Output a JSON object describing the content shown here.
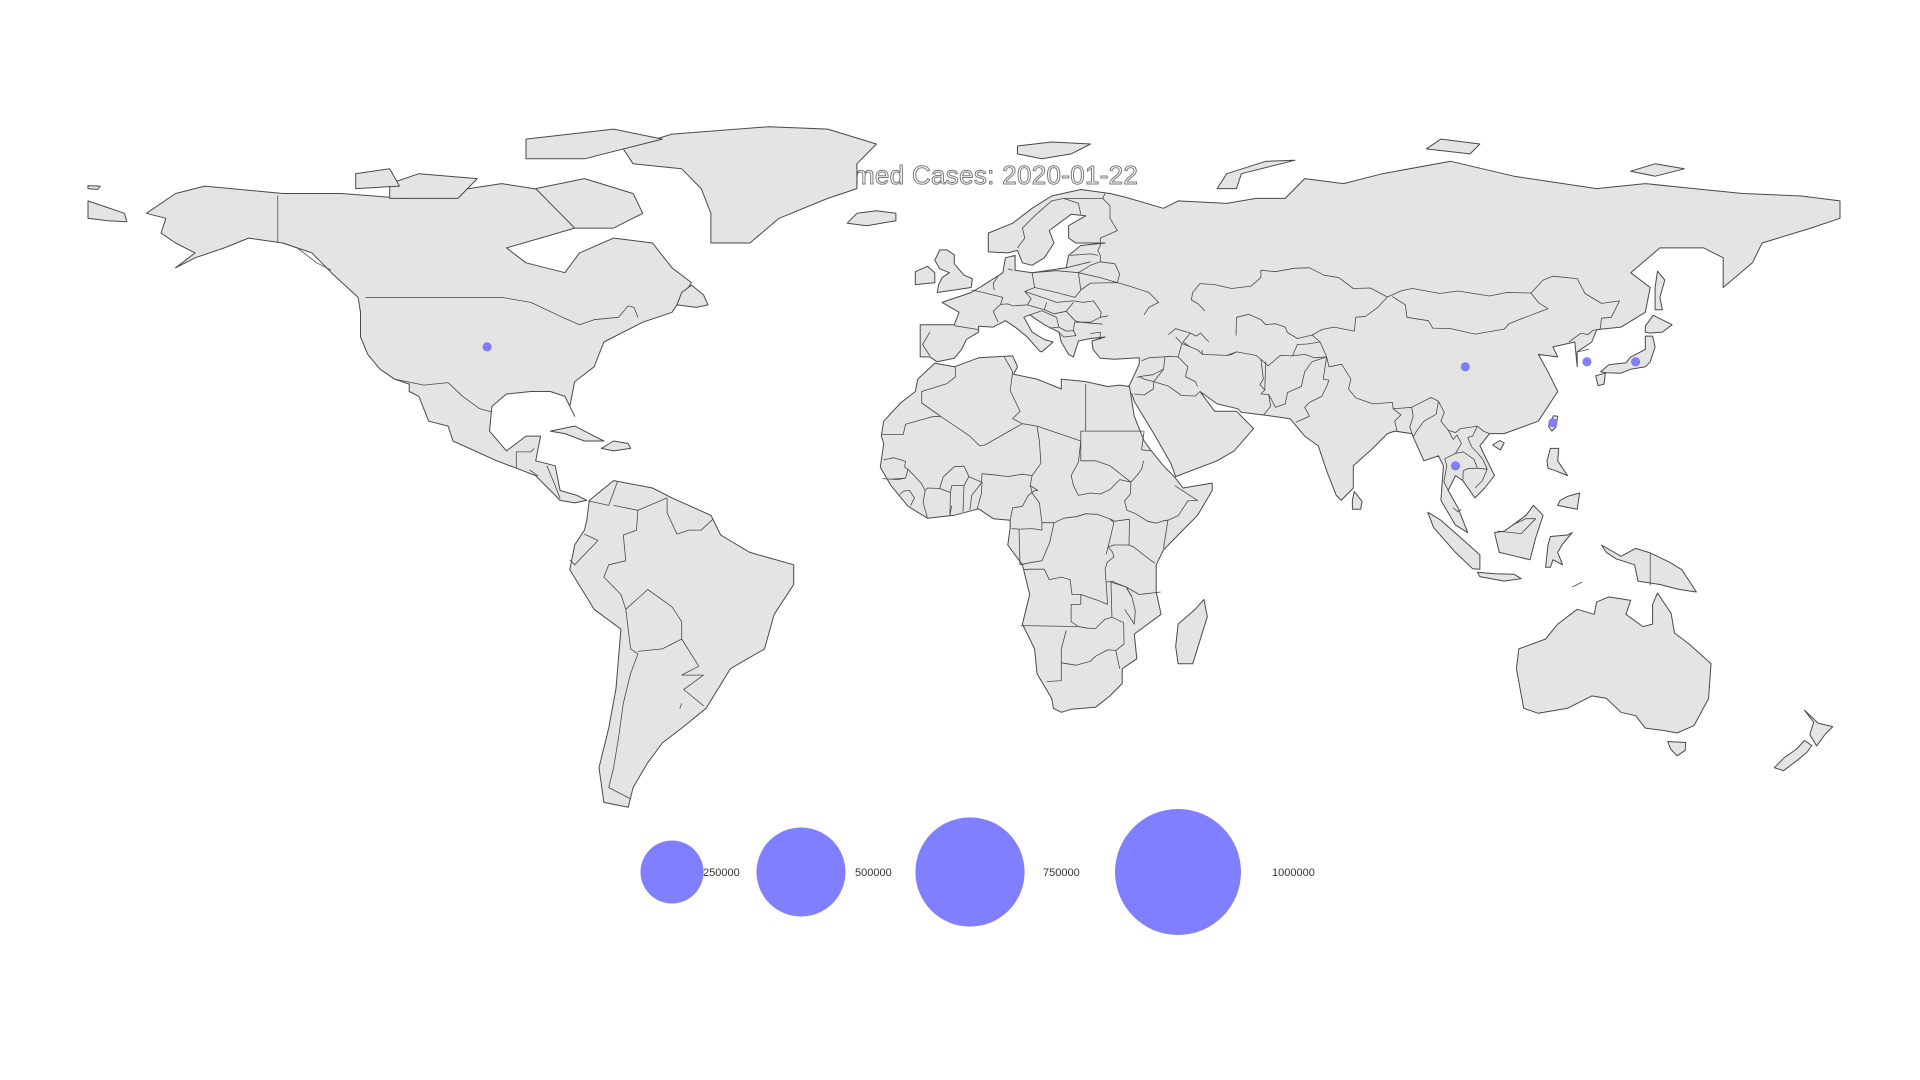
{
  "title": "Confirmed Cases: 2020-01-22",
  "colors": {
    "land": "#e4e4e4",
    "border": "#4a4a4a",
    "marker": "#7f7fff",
    "marker_edge": "#6f6ff0",
    "background": "#ffffff"
  },
  "chart_data": {
    "type": "bubble-map",
    "title": "Confirmed Cases: 2020-01-22",
    "date": "2020-01-22",
    "points": [
      {
        "location": "US",
        "lon": -98,
        "lat": 39
      },
      {
        "location": "China",
        "lon": 103,
        "lat": 35
      },
      {
        "location": "South Korea",
        "lon": 128,
        "lat": 36
      },
      {
        "location": "Japan",
        "lon": 138,
        "lat": 36
      },
      {
        "location": "Taiwan",
        "lon": 121,
        "lat": 23.7
      },
      {
        "location": "Thailand",
        "lon": 101,
        "lat": 15
      }
    ],
    "size_legend": {
      "values": [
        250000,
        500000,
        750000,
        1000000
      ],
      "labels": [
        "250000",
        "500000",
        "750000",
        "1000000"
      ],
      "placement": "bottom-center"
    }
  }
}
